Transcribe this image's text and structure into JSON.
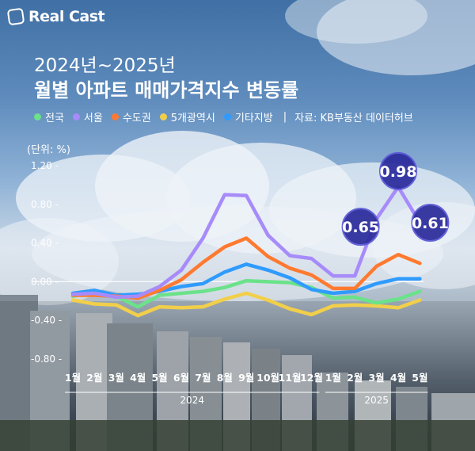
{
  "brand": {
    "name": "Real Cast"
  },
  "title_line1": "2024년~2025년",
  "title_line2": "월별 아파트 매매가격지수 변동률",
  "unit_label": "(단위: %)",
  "source": "자료: KB부동산 데이터허브",
  "separator": "|",
  "chart_data": {
    "type": "line",
    "title": "월별 아파트 매매가격지수 변동률",
    "ylabel": "(단위: %)",
    "ylim": [
      -0.8,
      1.2
    ],
    "yticks": [
      "1.20",
      "0.80",
      "0.40",
      "0.00",
      "-0.40",
      "-0.80"
    ],
    "yticks_values": [
      1.2,
      0.8,
      0.4,
      0.0,
      -0.4,
      -0.8
    ],
    "categories": [
      "1월",
      "2월",
      "3월",
      "4월",
      "5월",
      "6월",
      "7월",
      "8월",
      "9월",
      "10월",
      "11월",
      "12월",
      "1월",
      "2월",
      "3월",
      "4월",
      "5월"
    ],
    "year_labels": [
      "2024",
      "2025"
    ],
    "grid": false,
    "legend": "top-left",
    "series": [
      {
        "name": "전국",
        "color": "#6be28a",
        "values": [
          -0.15,
          -0.11,
          -0.15,
          -0.26,
          -0.14,
          -0.12,
          -0.1,
          -0.06,
          0.01,
          0.0,
          -0.01,
          -0.06,
          -0.17,
          -0.16,
          -0.22,
          -0.18,
          -0.1
        ]
      },
      {
        "name": "서울",
        "color": "#a78bfa",
        "values": [
          -0.13,
          -0.12,
          -0.16,
          -0.15,
          -0.05,
          0.12,
          0.45,
          0.9,
          0.89,
          0.48,
          0.27,
          0.24,
          0.06,
          0.06,
          0.65,
          0.98,
          0.61
        ]
      },
      {
        "name": "수도권",
        "color": "#ff7a30",
        "values": [
          -0.14,
          -0.14,
          -0.15,
          -0.17,
          -0.09,
          0.02,
          0.2,
          0.36,
          0.45,
          0.26,
          0.14,
          0.07,
          -0.07,
          -0.07,
          0.16,
          0.28,
          0.19
        ]
      },
      {
        "name": "5개광역시",
        "color": "#f2cf4a",
        "values": [
          -0.19,
          -0.23,
          -0.24,
          -0.35,
          -0.26,
          -0.27,
          -0.26,
          -0.18,
          -0.12,
          -0.19,
          -0.28,
          -0.34,
          -0.25,
          -0.24,
          -0.25,
          -0.27,
          -0.19
        ]
      },
      {
        "name": "기타지방",
        "color": "#2f9bff",
        "values": [
          -0.12,
          -0.09,
          -0.14,
          -0.13,
          -0.1,
          -0.05,
          -0.02,
          0.1,
          0.18,
          0.12,
          0.04,
          -0.08,
          -0.12,
          -0.1,
          -0.02,
          0.03,
          0.03
        ]
      }
    ],
    "annotations": [
      {
        "series": "서울",
        "label": "0.65",
        "index": 14
      },
      {
        "series": "서울",
        "label": "0.98",
        "index": 15
      },
      {
        "series": "서울",
        "label": "0.61",
        "index": 16
      }
    ]
  }
}
